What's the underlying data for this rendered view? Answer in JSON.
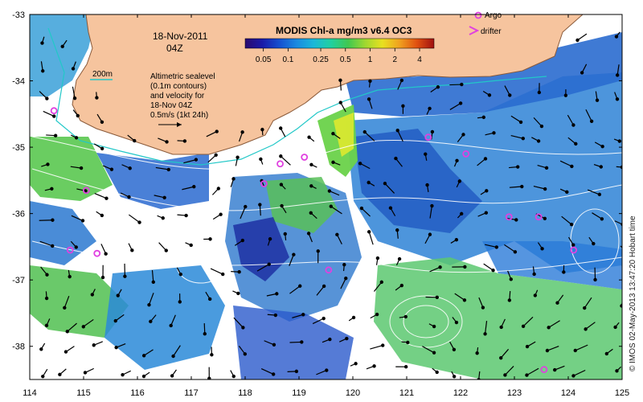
{
  "date_line1": "18-Nov-2011",
  "date_line2": "04Z",
  "isobath_label": "200m",
  "legend_title": "MODIS Chl-a mg/m3 v6.4 OC3",
  "colorbar_ticks": [
    "0.05",
    "0.1",
    "0.25",
    "0.5",
    "1",
    "2",
    "4"
  ],
  "colorbar_colors": [
    "#2a0a6e",
    "#1a1aa8",
    "#1550d0",
    "#1a8ae0",
    "#1ab8d8",
    "#20d0a0",
    "#40c850",
    "#a0d830",
    "#e8e020",
    "#f0a020",
    "#e05010",
    "#a01010"
  ],
  "argo_label": "Argo",
  "drifter_label": "drifter",
  "altimetry_note": [
    "Altimetric sealevel",
    "(0.1m contours)",
    "and velocity for",
    "18-Nov 04Z",
    "0.5m/s (1kt 24h)"
  ],
  "credit": "© IMOS 02-May-2013 13:47:20 Hobart time",
  "x_ticks": [
    "114",
    "115",
    "116",
    "117",
    "118",
    "119",
    "120",
    "121",
    "122",
    "123",
    "124",
    "125"
  ],
  "y_ticks": [
    "-33",
    "-34",
    "-35",
    "-36",
    "-37",
    "-38"
  ],
  "colors": {
    "land": "#f6c49e",
    "coast": "#8a5a3a",
    "isobath": "#22c8c8",
    "contour": "#ffffff",
    "argo": "#e040e0",
    "arrow": "#000000"
  },
  "map_data": {
    "x_range": [
      114,
      125
    ],
    "y_range": [
      -38.5,
      -33
    ],
    "argo_floats": [
      [
        114.45,
        -34.45
      ],
      [
        115.05,
        -35.65
      ],
      [
        114.75,
        -36.55
      ],
      [
        115.25,
        -36.6
      ],
      [
        118.65,
        -35.25
      ],
      [
        118.35,
        -35.55
      ],
      [
        119.1,
        -35.15
      ],
      [
        119.55,
        -36.85
      ],
      [
        121.4,
        -34.85
      ],
      [
        122.1,
        -35.1
      ],
      [
        122.9,
        -36.05
      ],
      [
        123.45,
        -36.05
      ],
      [
        124.1,
        -36.55
      ],
      [
        123.55,
        -38.35
      ]
    ],
    "legend_argo_marker": [
      122.8,
      -33.1
    ]
  }
}
